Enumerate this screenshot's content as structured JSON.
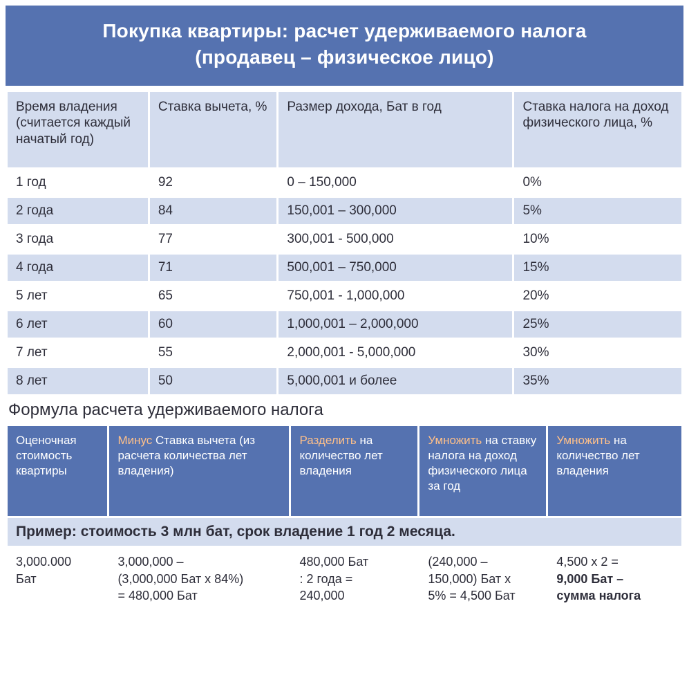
{
  "colors": {
    "banner_bg": "#5572b0",
    "banner_text": "#ffffff",
    "header_row_bg": "#d3dcee",
    "row_alt_bg": "#d3dcee",
    "row_plain_bg": "#ffffff",
    "text_color": "#2e2e3a",
    "accent_text": "#ffc089"
  },
  "title": {
    "line1": "Покупка квартиры: расчет удерживаемого налога",
    "line2": "(продавец – физическое лицо)"
  },
  "table1": {
    "headers": {
      "c0": "Время владения (считается каждый начатый год)",
      "c1": "Ставка вычета, %",
      "c2": "Размер дохода, Бат в год",
      "c3": "Ставка налога на доход физического лица, %"
    },
    "rows": [
      {
        "c0": "1 год",
        "c1": "92",
        "c2": "0 – 150,000",
        "c3": "0%"
      },
      {
        "c0": "2 года",
        "c1": "84",
        "c2": "150,001 – 300,000",
        "c3": "5%"
      },
      {
        "c0": "3 года",
        "c1": "77",
        "c2": "300,001 - 500,000",
        "c3": "10%"
      },
      {
        "c0": "4 года",
        "c1": "71",
        "c2": "500,001 – 750,000",
        "c3": "15%"
      },
      {
        "c0": "5 лет",
        "c1": "65",
        "c2": "750,001 - 1,000,000",
        "c3": "20%"
      },
      {
        "c0": "6 лет",
        "c1": "60",
        "c2": "1,000,001 – 2,000,000",
        "c3": "25%"
      },
      {
        "c0": "7 лет",
        "c1": "55",
        "c2": "2,000,001 - 5,000,000",
        "c3": "30%"
      },
      {
        "c0": "8 лет",
        "c1": "50",
        "c2": "5,000,001 и более",
        "c3": "35%"
      }
    ]
  },
  "formula_heading": "Формула расчета удерживаемого налога",
  "table2": {
    "headers": {
      "h0_plain": "Оценочная стоимость квартиры",
      "h1_accent": "Минус",
      "h1_rest": " Ставка вычета (из расчета количества лет владения)",
      "h2_accent": "Разделить",
      "h2_rest": " на количество лет владения",
      "h3_accent": "Умножить",
      "h3_rest": " на ставку налога на доход физического лица за год",
      "h4_accent": "Умножить",
      "h4_rest": " на количество лет владения"
    },
    "example_label_pre": "Пример: стоимость ",
    "example_val1": "3",
    "example_label_mid": " млн бат, срок владение ",
    "example_val2": "1",
    "example_label_mid2": " год ",
    "example_val3": "2",
    "example_label_post": " месяца.",
    "data": {
      "d0_l1": "3,000.000",
      "d0_l2": "Бат",
      "d1_l1": "3,000,000 –",
      "d1_l2": "(3,000,000 Бат x 84%)",
      "d1_l3": "= 480,000 Бат",
      "d2_l1": "480,000 Бат",
      "d2_l2": ": 2 года =",
      "d2_l3": "240,000",
      "d3_l1": "(240,000 –",
      "d3_l2": "150,000) Бат x",
      "d3_l3": "5% = 4,500 Бат",
      "d4_l1": "4,500 x 2 =",
      "d4_l2_bold": "9,000 Бат –",
      "d4_l3_bold": "сумма налога"
    }
  }
}
